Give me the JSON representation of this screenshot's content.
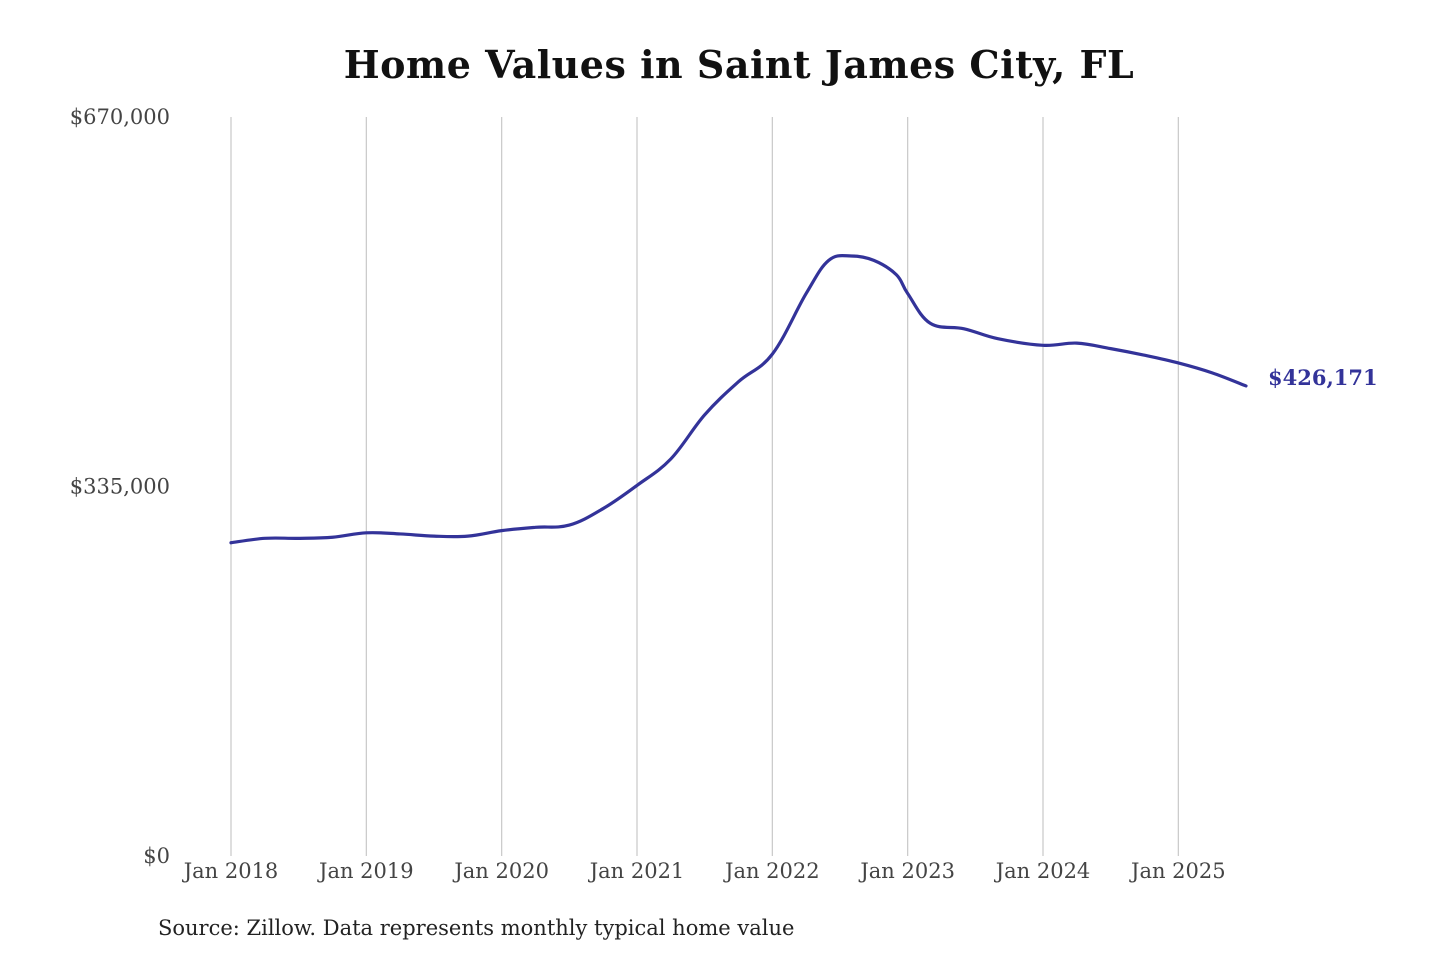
{
  "chart_data": {
    "type": "line",
    "title": "Home Values in Saint James City, FL",
    "source": "Source: Zillow. Data represents monthly typical home value",
    "x_tick_labels": [
      "Jan 2018",
      "Jan 2019",
      "Jan 2020",
      "Jan 2021",
      "Jan 2022",
      "Jan 2023",
      "Jan 2024",
      "Jan 2025"
    ],
    "y_tick_labels": [
      "$0",
      "$335,000",
      "$670,000"
    ],
    "y_ticks": [
      0,
      335000,
      670000
    ],
    "ylim": [
      0,
      670000
    ],
    "xlim": [
      "2018-01",
      "2025-07"
    ],
    "grid": "vertical",
    "line_color": "#333399",
    "end_label": "$426,171",
    "series": [
      {
        "x": [
          "2018-01",
          "2018-04",
          "2018-07",
          "2018-10",
          "2019-01",
          "2019-04",
          "2019-07",
          "2019-10",
          "2020-01",
          "2020-04",
          "2020-07",
          "2020-10",
          "2021-01",
          "2021-04",
          "2021-07",
          "2021-10",
          "2022-01",
          "2022-04",
          "2022-06",
          "2022-08",
          "2022-10",
          "2022-12",
          "2023-01",
          "2023-03",
          "2023-06",
          "2023-09",
          "2024-01",
          "2024-04",
          "2024-07",
          "2024-10",
          "2025-01",
          "2025-04",
          "2025-07"
        ],
        "y": [
          284000,
          288000,
          288000,
          289000,
          293000,
          292000,
          290000,
          290000,
          295000,
          298000,
          300000,
          315000,
          336000,
          360000,
          400000,
          430000,
          455000,
          510000,
          540000,
          544000,
          540000,
          527000,
          510000,
          483000,
          478000,
          469000,
          463000,
          465000,
          460000,
          454000,
          447000,
          438000,
          426171
        ]
      }
    ]
  }
}
